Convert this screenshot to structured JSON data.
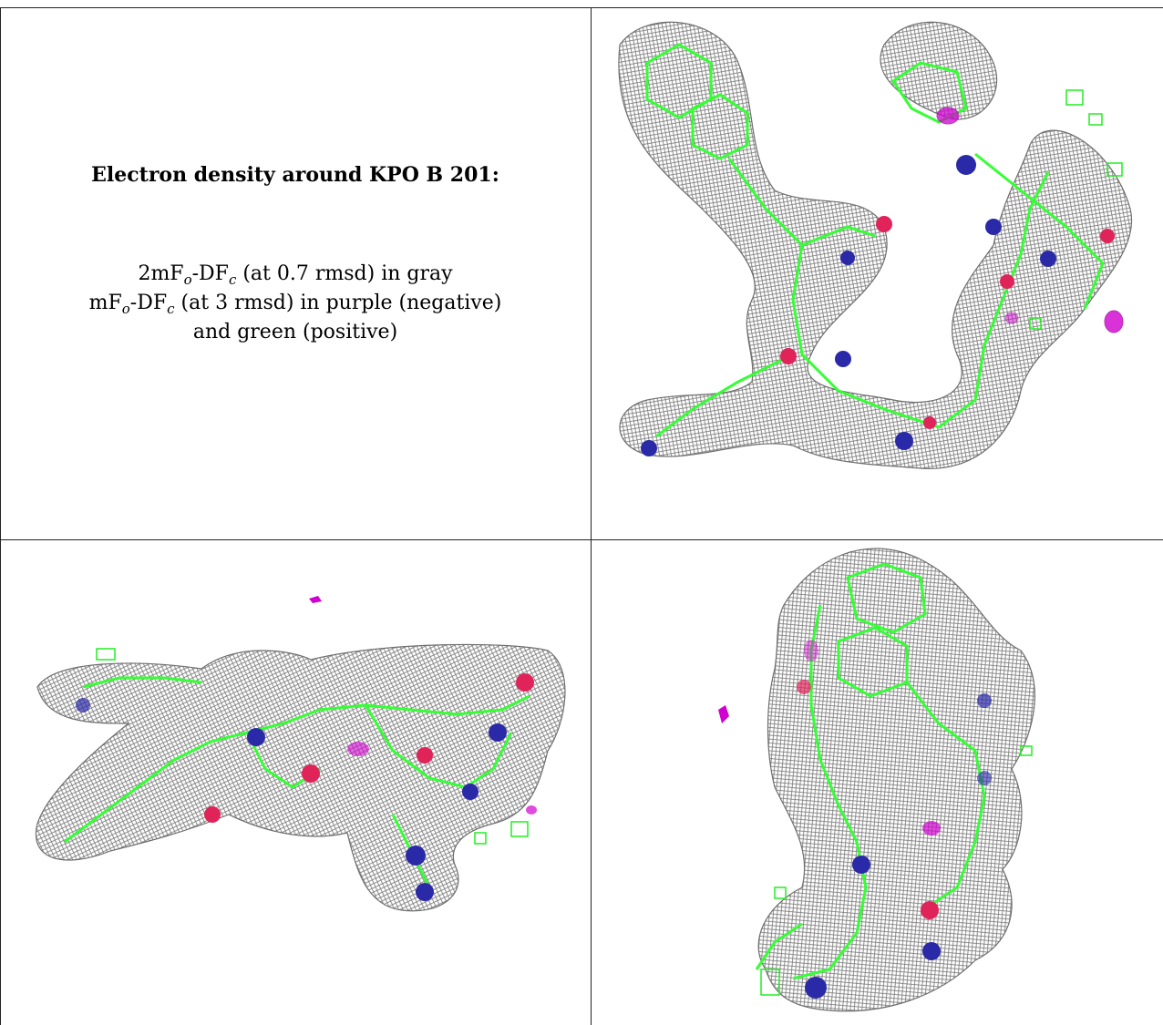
{
  "caption": {
    "title": "Electron density around KPO B 201:",
    "line1": {
      "prefix": "2mF",
      "sub1": "o",
      "mid": "-DF",
      "sub2": "c",
      "suffix": " (at 0.7 rmsd) in gray"
    },
    "line2": {
      "prefix": "mF",
      "sub1": "o",
      "mid": "-DF",
      "sub2": "c",
      "suffix": " (at 3 rmsd) in purple (negative)"
    },
    "line3": "and green (positive)"
  },
  "colors": {
    "density_2fofc": "#8c8c8c",
    "density_negative": "#d000d0",
    "density_positive": "#22ee22",
    "carbon": "#33ff33",
    "nitrogen": "#2a2aa8",
    "oxygen": "#e0245a"
  },
  "views": [
    {
      "name": "density-view-top-right"
    },
    {
      "name": "density-view-bottom-left"
    },
    {
      "name": "density-view-bottom-right"
    }
  ]
}
